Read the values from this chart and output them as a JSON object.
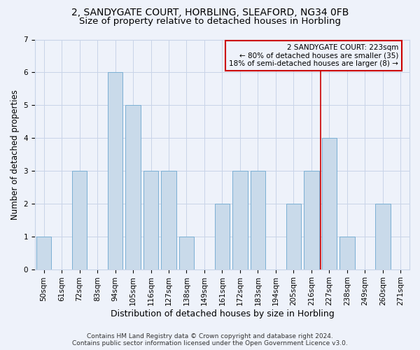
{
  "title_line1": "2, SANDYGATE COURT, HORBLING, SLEAFORD, NG34 0FB",
  "title_line2": "Size of property relative to detached houses in Horbling",
  "xlabel": "Distribution of detached houses by size in Horbling",
  "ylabel": "Number of detached properties",
  "categories": [
    "50sqm",
    "61sqm",
    "72sqm",
    "83sqm",
    "94sqm",
    "105sqm",
    "116sqm",
    "127sqm",
    "138sqm",
    "149sqm",
    "161sqm",
    "172sqm",
    "183sqm",
    "194sqm",
    "205sqm",
    "216sqm",
    "227sqm",
    "238sqm",
    "249sqm",
    "260sqm",
    "271sqm"
  ],
  "values": [
    1,
    0,
    3,
    0,
    6,
    5,
    3,
    3,
    1,
    0,
    2,
    3,
    3,
    0,
    2,
    3,
    4,
    1,
    0,
    2,
    0
  ],
  "bar_color": "#c9daea",
  "bar_edgecolor": "#7aafd4",
  "grid_color": "#c8d4e8",
  "vline_x_index": 16,
  "vline_color": "#cc0000",
  "annotation_line1": "2 SANDYGATE COURT: 223sqm",
  "annotation_line2": "← 80% of detached houses are smaller (35)",
  "annotation_line3": "18% of semi-detached houses are larger (8) →",
  "annotation_box_edgecolor": "#cc0000",
  "annotation_fontsize": 7.5,
  "title_fontsize1": 10,
  "title_fontsize2": 9.5,
  "xlabel_fontsize": 9,
  "ylabel_fontsize": 8.5,
  "tick_fontsize": 7.5,
  "ylim_max": 7,
  "yticks": [
    0,
    1,
    2,
    3,
    4,
    5,
    6,
    7
  ],
  "footer_line1": "Contains HM Land Registry data © Crown copyright and database right 2024.",
  "footer_line2": "Contains public sector information licensed under the Open Government Licence v3.0.",
  "footer_fontsize": 6.5,
  "background_color": "#eef2fa"
}
